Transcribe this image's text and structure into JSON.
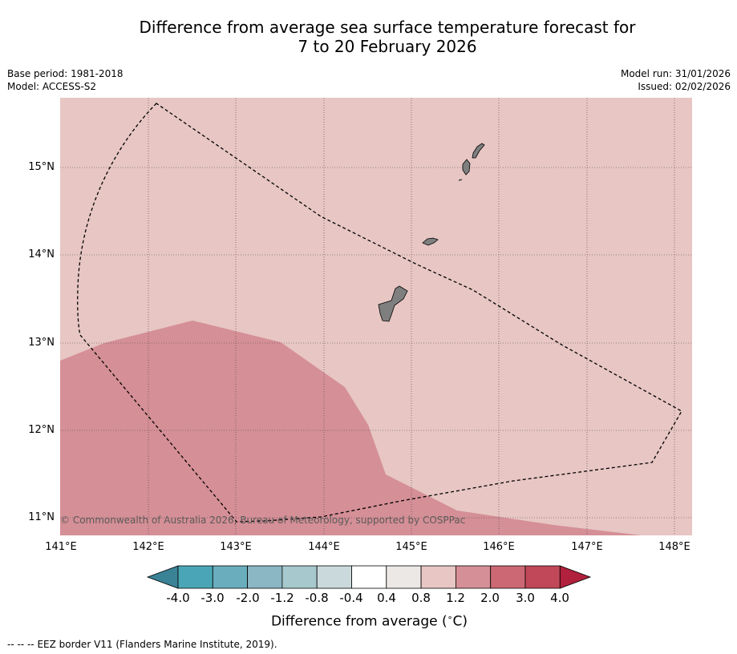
{
  "title": {
    "line1": "Difference from average sea surface temperature forecast for",
    "line2": "7 to 20 February 2026"
  },
  "meta": {
    "base_period": "Base period: 1981-2018",
    "model": "Model: ACCESS-S2",
    "model_run": "Model run: 31/01/2026",
    "issued": "Issued: 02/02/2026"
  },
  "map": {
    "lat_labels": [
      "15°N",
      "14°N",
      "13°N",
      "12°N",
      "11°N"
    ],
    "lon_labels": [
      "141°E",
      "142°E",
      "143°E",
      "144°E",
      "145°E",
      "146°E",
      "147°E",
      "148°E"
    ],
    "background_category": "0.8 to 1.2",
    "warm_region_category": "1.2 to 2.0",
    "colors": {
      "background": "#e7c6c3",
      "warm_region": "#d58f96",
      "land": "#7f7f7f"
    },
    "copyright": "© Commonwealth of Australia 2026, Bureau of Meteorology, supported by COSPPac",
    "features": [
      "eez-border-dashed",
      "guam-island",
      "rota-island",
      "tinian-island",
      "saipan-island"
    ]
  },
  "colorbar": {
    "ticks": [
      "-4.0",
      "-3.0",
      "-2.0",
      "-1.2",
      "-0.8",
      "-0.4",
      "0.4",
      "0.8",
      "1.2",
      "2.0",
      "3.0",
      "4.0"
    ],
    "colors": [
      "#3a8296",
      "#4aa6b6",
      "#6aaebd",
      "#8bb6c3",
      "#a7c8cc",
      "#c9d9dc",
      "#ffffff",
      "#ece8e6",
      "#e7c6c3",
      "#d58f96",
      "#cb6874",
      "#c04858",
      "#b1203c"
    ],
    "title": "Difference from average (",
    "unit_deg": "∘",
    "unit_c": "C)"
  },
  "footnote": {
    "dash": "-- -- --",
    "text": "EEZ border V11 (Flanders Marine Institute, 2019)."
  }
}
